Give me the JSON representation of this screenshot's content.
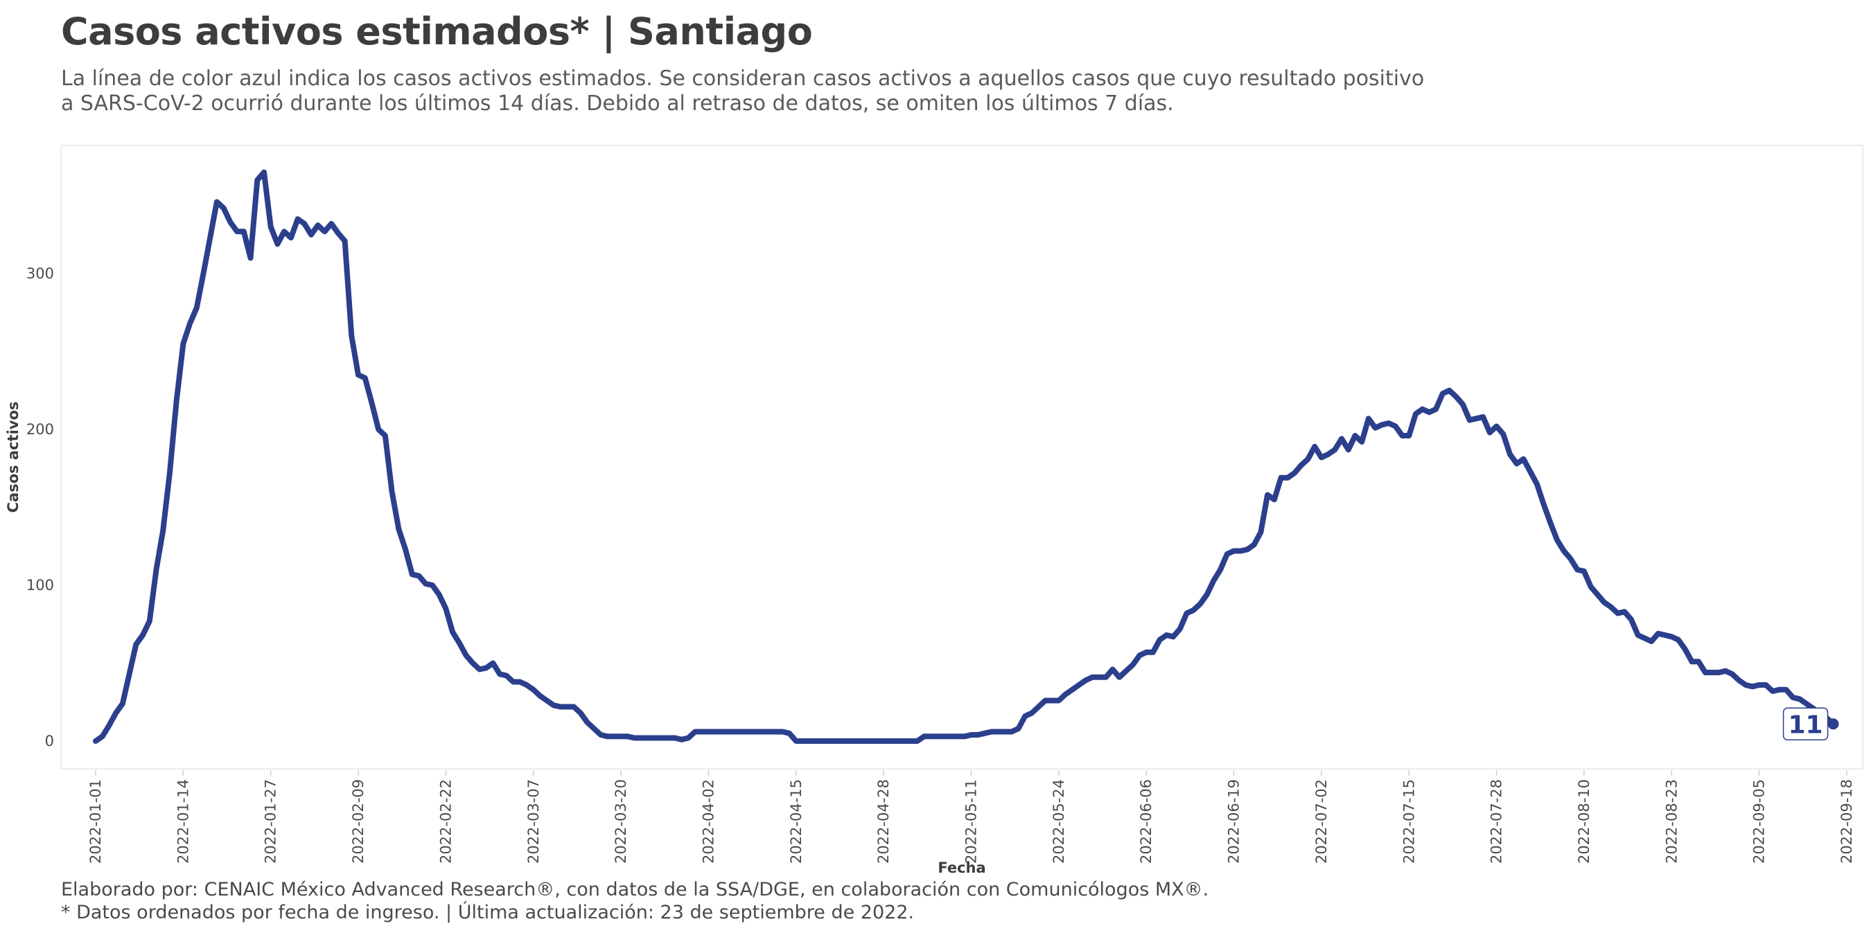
{
  "title": "Casos activos estimados* | Santiago",
  "subtitle": {
    "line1": "La línea de color azul indica los casos activos estimados. Se consideran casos activos a aquellos casos que cuyo resultado positivo",
    "line2": "a SARS-CoV-2 ocurrió durante los últimos 14 días. Debido al retraso de datos, se omiten los últimos 7 días."
  },
  "caption": {
    "line1": "Elaborado por: CENAIC México Advanced Research®, con datos de la SSA/DGE, en colaboración con Comunicólogos MX®.",
    "line2": "* Datos ordenados por fecha de ingreso. | Última actualización: 23 de septiembre de 2022."
  },
  "colors": {
    "line": "#2b3f8c",
    "panel_border": "#ececec"
  },
  "chart_data": {
    "type": "line",
    "title": "Casos activos estimados* | Santiago",
    "xlabel": "Fecha",
    "ylabel": "Casos activos",
    "grid": false,
    "x_start": "2022-01-01",
    "x_end": "2022-09-18",
    "xlim": [
      "2022-01-01",
      "2022-09-18"
    ],
    "ylim": [
      -17,
      368
    ],
    "x_ticks": [
      "2022-01-01",
      "2022-01-14",
      "2022-01-27",
      "2022-02-09",
      "2022-02-22",
      "2022-03-07",
      "2022-03-20",
      "2022-04-02",
      "2022-04-15",
      "2022-04-28",
      "2022-05-11",
      "2022-05-24",
      "2022-06-06",
      "2022-06-19",
      "2022-07-02",
      "2022-07-15",
      "2022-07-28",
      "2022-08-10",
      "2022-08-23",
      "2022-09-05",
      "2022-09-18"
    ],
    "y_ticks": [
      0,
      100,
      200,
      300
    ],
    "end_label": "11",
    "series": [
      {
        "points": [
          [
            "2022-01-01",
            0
          ],
          [
            "2022-01-02",
            3
          ],
          [
            "2022-01-03",
            10
          ],
          [
            "2022-01-04",
            18
          ],
          [
            "2022-01-05",
            24
          ],
          [
            "2022-01-06",
            43
          ],
          [
            "2022-01-07",
            62
          ],
          [
            "2022-01-08",
            68
          ],
          [
            "2022-01-09",
            77
          ],
          [
            "2022-01-10",
            110
          ],
          [
            "2022-01-11",
            135
          ],
          [
            "2022-01-12",
            172
          ],
          [
            "2022-01-13",
            218
          ],
          [
            "2022-01-14",
            255
          ],
          [
            "2022-01-15",
            268
          ],
          [
            "2022-01-16",
            278
          ],
          [
            "2022-01-17",
            300
          ],
          [
            "2022-01-18",
            323
          ],
          [
            "2022-01-19",
            346
          ],
          [
            "2022-01-20",
            342
          ],
          [
            "2022-01-21",
            333
          ],
          [
            "2022-01-22",
            327
          ],
          [
            "2022-01-23",
            327
          ],
          [
            "2022-01-24",
            310
          ],
          [
            "2022-01-25",
            360
          ],
          [
            "2022-01-26",
            365
          ],
          [
            "2022-01-27",
            330
          ],
          [
            "2022-01-28",
            319
          ],
          [
            "2022-01-29",
            327
          ],
          [
            "2022-01-30",
            323
          ],
          [
            "2022-01-31",
            335
          ],
          [
            "2022-02-01",
            332
          ],
          [
            "2022-02-02",
            325
          ],
          [
            "2022-02-03",
            331
          ],
          [
            "2022-02-04",
            327
          ],
          [
            "2022-02-05",
            332
          ],
          [
            "2022-02-06",
            326
          ],
          [
            "2022-02-07",
            321
          ],
          [
            "2022-02-08",
            260
          ],
          [
            "2022-02-09",
            235
          ],
          [
            "2022-02-10",
            233
          ],
          [
            "2022-02-11",
            217
          ],
          [
            "2022-02-12",
            200
          ],
          [
            "2022-02-13",
            196
          ],
          [
            "2022-02-14",
            160
          ],
          [
            "2022-02-15",
            136
          ],
          [
            "2022-02-16",
            123
          ],
          [
            "2022-02-17",
            107
          ],
          [
            "2022-02-18",
            106
          ],
          [
            "2022-02-19",
            101
          ],
          [
            "2022-02-20",
            100
          ],
          [
            "2022-02-21",
            94
          ],
          [
            "2022-02-22",
            85
          ],
          [
            "2022-02-23",
            70
          ],
          [
            "2022-02-24",
            63
          ],
          [
            "2022-02-25",
            55
          ],
          [
            "2022-02-26",
            50
          ],
          [
            "2022-02-27",
            46
          ],
          [
            "2022-02-28",
            47
          ],
          [
            "2022-03-01",
            50
          ],
          [
            "2022-03-02",
            43
          ],
          [
            "2022-03-03",
            42
          ],
          [
            "2022-03-04",
            38
          ],
          [
            "2022-03-05",
            38
          ],
          [
            "2022-03-06",
            36
          ],
          [
            "2022-03-07",
            33
          ],
          [
            "2022-03-08",
            29
          ],
          [
            "2022-03-09",
            26
          ],
          [
            "2022-03-10",
            23
          ],
          [
            "2022-03-11",
            22
          ],
          [
            "2022-03-12",
            22
          ],
          [
            "2022-03-13",
            22
          ],
          [
            "2022-03-14",
            18
          ],
          [
            "2022-03-15",
            12
          ],
          [
            "2022-03-16",
            8
          ],
          [
            "2022-03-17",
            4
          ],
          [
            "2022-03-18",
            3
          ],
          [
            "2022-03-19",
            3
          ],
          [
            "2022-03-20",
            3
          ],
          [
            "2022-03-21",
            3
          ],
          [
            "2022-03-22",
            2
          ],
          [
            "2022-03-23",
            2
          ],
          [
            "2022-03-24",
            2
          ],
          [
            "2022-03-25",
            2
          ],
          [
            "2022-03-26",
            2
          ],
          [
            "2022-03-27",
            2
          ],
          [
            "2022-03-28",
            2
          ],
          [
            "2022-03-29",
            1
          ],
          [
            "2022-03-30",
            2
          ],
          [
            "2022-03-31",
            6
          ],
          [
            "2022-04-01",
            6
          ],
          [
            "2022-04-02",
            6
          ],
          [
            "2022-04-03",
            6
          ],
          [
            "2022-04-04",
            6
          ],
          [
            "2022-04-05",
            6
          ],
          [
            "2022-04-06",
            6
          ],
          [
            "2022-04-07",
            6
          ],
          [
            "2022-04-08",
            6
          ],
          [
            "2022-04-09",
            6
          ],
          [
            "2022-04-10",
            6
          ],
          [
            "2022-04-11",
            6
          ],
          [
            "2022-04-12",
            6
          ],
          [
            "2022-04-13",
            6
          ],
          [
            "2022-04-14",
            5
          ],
          [
            "2022-04-15",
            0
          ],
          [
            "2022-04-16",
            0
          ],
          [
            "2022-04-17",
            0
          ],
          [
            "2022-04-18",
            0
          ],
          [
            "2022-04-19",
            0
          ],
          [
            "2022-04-20",
            0
          ],
          [
            "2022-04-21",
            0
          ],
          [
            "2022-04-22",
            0
          ],
          [
            "2022-04-23",
            0
          ],
          [
            "2022-04-24",
            0
          ],
          [
            "2022-04-25",
            0
          ],
          [
            "2022-04-26",
            0
          ],
          [
            "2022-04-27",
            0
          ],
          [
            "2022-04-28",
            0
          ],
          [
            "2022-04-29",
            0
          ],
          [
            "2022-04-30",
            0
          ],
          [
            "2022-05-01",
            0
          ],
          [
            "2022-05-02",
            0
          ],
          [
            "2022-05-03",
            0
          ],
          [
            "2022-05-04",
            3
          ],
          [
            "2022-05-05",
            3
          ],
          [
            "2022-05-06",
            3
          ],
          [
            "2022-05-07",
            3
          ],
          [
            "2022-05-08",
            3
          ],
          [
            "2022-05-09",
            3
          ],
          [
            "2022-05-10",
            3
          ],
          [
            "2022-05-11",
            4
          ],
          [
            "2022-05-12",
            4
          ],
          [
            "2022-05-13",
            5
          ],
          [
            "2022-05-14",
            6
          ],
          [
            "2022-05-15",
            6
          ],
          [
            "2022-05-16",
            6
          ],
          [
            "2022-05-17",
            6
          ],
          [
            "2022-05-18",
            8
          ],
          [
            "2022-05-19",
            16
          ],
          [
            "2022-05-20",
            18
          ],
          [
            "2022-05-21",
            22
          ],
          [
            "2022-05-22",
            26
          ],
          [
            "2022-05-23",
            26
          ],
          [
            "2022-05-24",
            26
          ],
          [
            "2022-05-25",
            30
          ],
          [
            "2022-05-26",
            33
          ],
          [
            "2022-05-27",
            36
          ],
          [
            "2022-05-28",
            39
          ],
          [
            "2022-05-29",
            41
          ],
          [
            "2022-05-30",
            41
          ],
          [
            "2022-05-31",
            41
          ],
          [
            "2022-06-01",
            46
          ],
          [
            "2022-06-02",
            41
          ],
          [
            "2022-06-03",
            45
          ],
          [
            "2022-06-04",
            49
          ],
          [
            "2022-06-05",
            55
          ],
          [
            "2022-06-06",
            57
          ],
          [
            "2022-06-07",
            57
          ],
          [
            "2022-06-08",
            65
          ],
          [
            "2022-06-09",
            68
          ],
          [
            "2022-06-10",
            67
          ],
          [
            "2022-06-11",
            72
          ],
          [
            "2022-06-12",
            82
          ],
          [
            "2022-06-13",
            84
          ],
          [
            "2022-06-14",
            88
          ],
          [
            "2022-06-15",
            94
          ],
          [
            "2022-06-16",
            103
          ],
          [
            "2022-06-17",
            110
          ],
          [
            "2022-06-18",
            120
          ],
          [
            "2022-06-19",
            122
          ],
          [
            "2022-06-20",
            122
          ],
          [
            "2022-06-21",
            123
          ],
          [
            "2022-06-22",
            126
          ],
          [
            "2022-06-23",
            134
          ],
          [
            "2022-06-24",
            158
          ],
          [
            "2022-06-25",
            155
          ],
          [
            "2022-06-26",
            169
          ],
          [
            "2022-06-27",
            169
          ],
          [
            "2022-06-28",
            172
          ],
          [
            "2022-06-29",
            177
          ],
          [
            "2022-06-30",
            181
          ],
          [
            "2022-07-01",
            189
          ],
          [
            "2022-07-02",
            182
          ],
          [
            "2022-07-03",
            184
          ],
          [
            "2022-07-04",
            187
          ],
          [
            "2022-07-05",
            194
          ],
          [
            "2022-07-06",
            187
          ],
          [
            "2022-07-07",
            196
          ],
          [
            "2022-07-08",
            192
          ],
          [
            "2022-07-09",
            207
          ],
          [
            "2022-07-10",
            201
          ],
          [
            "2022-07-11",
            203
          ],
          [
            "2022-07-12",
            204
          ],
          [
            "2022-07-13",
            202
          ],
          [
            "2022-07-14",
            196
          ],
          [
            "2022-07-15",
            196
          ],
          [
            "2022-07-16",
            210
          ],
          [
            "2022-07-17",
            213
          ],
          [
            "2022-07-18",
            211
          ],
          [
            "2022-07-19",
            213
          ],
          [
            "2022-07-20",
            223
          ],
          [
            "2022-07-21",
            225
          ],
          [
            "2022-07-22",
            221
          ],
          [
            "2022-07-23",
            216
          ],
          [
            "2022-07-24",
            206
          ],
          [
            "2022-07-25",
            207
          ],
          [
            "2022-07-26",
            208
          ],
          [
            "2022-07-27",
            198
          ],
          [
            "2022-07-28",
            202
          ],
          [
            "2022-07-29",
            197
          ],
          [
            "2022-07-30",
            184
          ],
          [
            "2022-07-31",
            178
          ],
          [
            "2022-08-01",
            181
          ],
          [
            "2022-08-02",
            173
          ],
          [
            "2022-08-03",
            165
          ],
          [
            "2022-08-04",
            152
          ],
          [
            "2022-08-05",
            140
          ],
          [
            "2022-08-06",
            129
          ],
          [
            "2022-08-07",
            122
          ],
          [
            "2022-08-08",
            117
          ],
          [
            "2022-08-09",
            110
          ],
          [
            "2022-08-10",
            109
          ],
          [
            "2022-08-11",
            99
          ],
          [
            "2022-08-12",
            94
          ],
          [
            "2022-08-13",
            89
          ],
          [
            "2022-08-14",
            86
          ],
          [
            "2022-08-15",
            82
          ],
          [
            "2022-08-16",
            83
          ],
          [
            "2022-08-17",
            78
          ],
          [
            "2022-08-18",
            68
          ],
          [
            "2022-08-19",
            66
          ],
          [
            "2022-08-20",
            64
          ],
          [
            "2022-08-21",
            69
          ],
          [
            "2022-08-22",
            68
          ],
          [
            "2022-08-23",
            67
          ],
          [
            "2022-08-24",
            65
          ],
          [
            "2022-08-25",
            59
          ],
          [
            "2022-08-26",
            51
          ],
          [
            "2022-08-27",
            51
          ],
          [
            "2022-08-28",
            44
          ],
          [
            "2022-08-29",
            44
          ],
          [
            "2022-08-30",
            44
          ],
          [
            "2022-08-31",
            45
          ],
          [
            "2022-09-01",
            43
          ],
          [
            "2022-09-02",
            39
          ],
          [
            "2022-09-03",
            36
          ],
          [
            "2022-09-04",
            35
          ],
          [
            "2022-09-05",
            36
          ],
          [
            "2022-09-06",
            36
          ],
          [
            "2022-09-07",
            32
          ],
          [
            "2022-09-08",
            33
          ],
          [
            "2022-09-09",
            33
          ],
          [
            "2022-09-10",
            28
          ],
          [
            "2022-09-11",
            27
          ],
          [
            "2022-09-12",
            24
          ],
          [
            "2022-09-13",
            21
          ],
          [
            "2022-09-14",
            18
          ],
          [
            "2022-09-15",
            15
          ],
          [
            "2022-09-16",
            11
          ]
        ]
      }
    ]
  }
}
